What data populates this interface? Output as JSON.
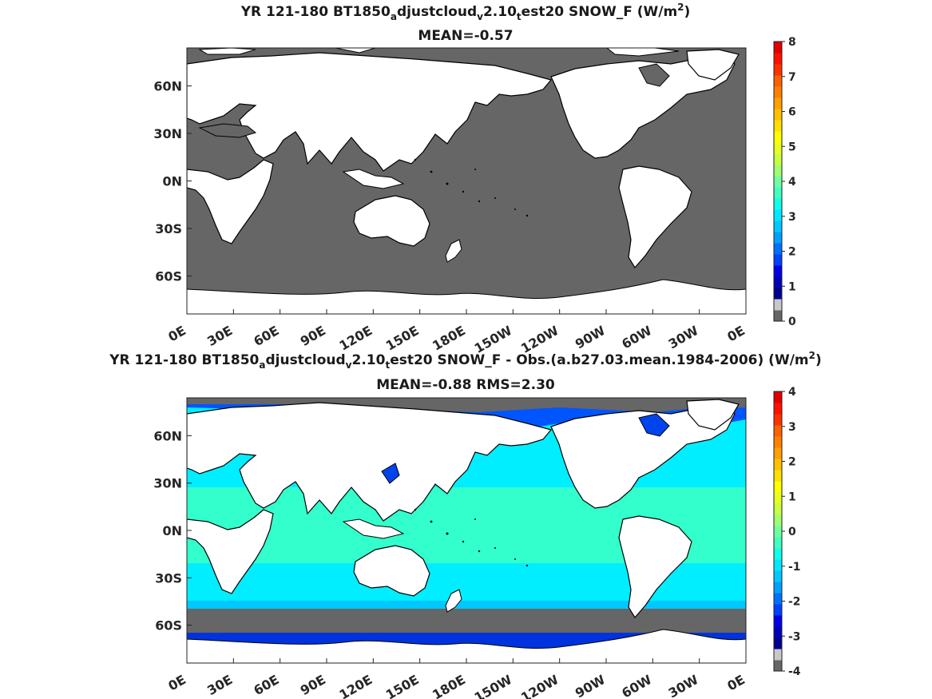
{
  "chart_data": [
    {
      "type": "heatmap",
      "title": "YR 121-180 BT1850_adjustcloud_v2.10_test20  SNOW_F (W/m^2)",
      "title_parts": {
        "pre": "YR 121-180 BT1850",
        "s1": "a",
        "m1": "djustcloud",
        "s2": "v",
        "m2": "2.10",
        "s3": "t",
        "m3": "est20  SNOW_F (W/m",
        "sup": "2",
        "post": ")"
      },
      "subtitle": "MEAN=-0.57",
      "x_ticks": [
        "0E",
        "30E",
        "60E",
        "90E",
        "120E",
        "150E",
        "180E",
        "150W",
        "120W",
        "90W",
        "60W",
        "30W",
        "0E"
      ],
      "y_ticks": [
        "60N",
        "30N",
        "0N",
        "30S",
        "60S"
      ],
      "colorbar": {
        "ticks": [
          "0",
          "1",
          "2",
          "3",
          "4",
          "5",
          "6",
          "7",
          "8"
        ],
        "range": [
          0,
          8
        ],
        "levels": [
          0,
          0.5,
          0.75,
          1,
          1.25,
          1.5,
          2,
          2.25,
          2.5,
          2.75,
          3,
          3.25,
          3.5,
          3.75,
          4,
          4.25,
          4.5,
          4.75,
          5,
          5.25,
          5.5,
          5.75,
          6,
          6.25,
          6.5,
          6.75,
          7,
          7.25,
          7.5,
          7.75,
          8
        ],
        "colors": [
          "#666666",
          "#c8c8c8",
          "#000090",
          "#0000b8",
          "#0000e8",
          "#0040ff",
          "#0070ff",
          "#00a0ff",
          "#00c8ff",
          "#00e8ff",
          "#10ffe8",
          "#40ffc0",
          "#70ffa0",
          "#a0ff70",
          "#c8ff40",
          "#e8ff20",
          "#ffff00",
          "#ffe000",
          "#ffc000",
          "#ffa000",
          "#ff8000",
          "#ff6000",
          "#ff3000",
          "#ff1000",
          "#e00000"
        ]
      },
      "fields": {
        "land": "#ffffff",
        "ocean": "#666666",
        "polar_sea": "#ffffff"
      }
    },
    {
      "type": "heatmap",
      "title": "YR 121-180 BT1850_adjustcloud_v2.10_test20 SNOW_F - Obs.(a.b27.03.mean.1984-2006) (W/m^2)",
      "title_parts": {
        "pre": "YR 121-180 BT1850",
        "s1": "a",
        "m1": "djustcloud",
        "s2": "v",
        "m2": "2.10",
        "s3": "t",
        "m3": "est20 SNOW_F - Obs.(a.b27.03.mean.1984-2006) (W/m",
        "sup": "2",
        "post": ")"
      },
      "subtitle": "MEAN=-0.88 RMS=2.30",
      "x_ticks": [
        "0E",
        "30E",
        "60E",
        "90E",
        "120E",
        "150E",
        "180E",
        "150W",
        "120W",
        "90W",
        "60W",
        "30W",
        "0E"
      ],
      "y_ticks": [
        "60N",
        "30N",
        "0N",
        "30S",
        "60S"
      ],
      "colorbar": {
        "ticks": [
          "4",
          "3",
          "2",
          "1",
          "0",
          "-1",
          "-2",
          "-3",
          "-4"
        ],
        "range": [
          -4,
          4
        ],
        "colors": [
          "#666666",
          "#c8c8c8",
          "#000090",
          "#0000b8",
          "#0000e8",
          "#0040ff",
          "#0070ff",
          "#00a0ff",
          "#00c8ff",
          "#00e8ff",
          "#10ffe8",
          "#40ffc0",
          "#70ffa0",
          "#a0ff70",
          "#c8ff40",
          "#e8ff20",
          "#ffff00",
          "#ffe000",
          "#ffc000",
          "#ffa000",
          "#ff8000",
          "#ff6000",
          "#ff3000",
          "#ff1000",
          "#e00000"
        ]
      },
      "fields": {
        "land": "#ffffff",
        "ocean_low_lat": "#33ffcc",
        "ocean_mid_lat": "#00eeff",
        "storm_track": "#0066ff",
        "southern_band": "#666666",
        "antarctic_shelf": "#0033dd"
      }
    }
  ]
}
